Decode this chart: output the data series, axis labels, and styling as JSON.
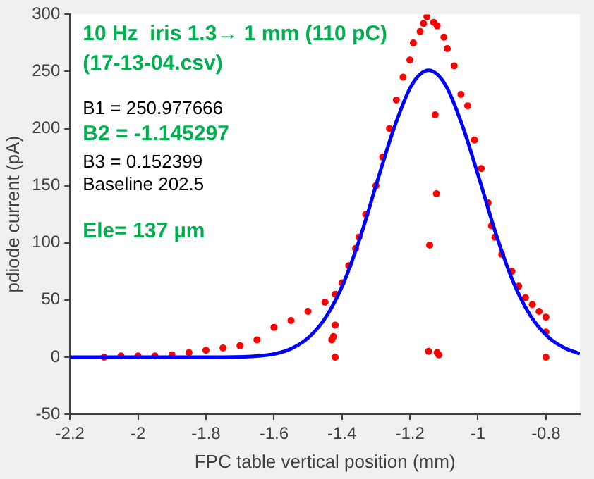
{
  "chart_data": {
    "type": "scatter",
    "xlabel": "FPC table vertical position (mm)",
    "ylabel": "pdiode current (pA)",
    "xlim": [
      -2.2,
      -0.7
    ],
    "xticks": [
      -2.2,
      -2,
      -1.8,
      -1.6,
      -1.4,
      -1.2,
      -1,
      -0.8
    ],
    "ylim": [
      -50,
      300
    ],
    "yticks": [
      -50,
      0,
      50,
      100,
      150,
      200,
      250,
      300
    ],
    "grid": false,
    "legend": false,
    "marker": "circle",
    "annotations": [
      "10 Hz  iris 1.3→ 1 mm (110 pC)",
      "(17-13-04.csv)",
      "B1 = 250.977666",
      "B2 = -1.145297",
      "B3 = 0.152399",
      "Baseline 202.5",
      "Ele= 137 µm"
    ],
    "series": [
      {
        "color": "#ff0000",
        "x": [
          -2.1,
          -2.05,
          -2.0,
          -1.95,
          -1.9,
          -1.85,
          -1.8,
          -1.75,
          -1.7,
          -1.65,
          -1.6,
          -1.55,
          -1.5,
          -1.45,
          -1.42,
          -1.4,
          -1.38,
          -1.36,
          -1.35,
          -1.33,
          -1.3,
          -1.28,
          -1.26,
          -1.24,
          -1.22,
          -1.2,
          -1.19,
          -1.17,
          -1.16,
          -1.15,
          -1.13,
          -1.12,
          -1.1,
          -1.09,
          -1.07,
          -1.05,
          -1.03,
          -1.01,
          -0.99,
          -0.97,
          -0.96,
          -0.95,
          -0.93,
          -0.9,
          -0.88,
          -0.86,
          -0.84,
          -0.82,
          -0.8,
          -0.8,
          -0.8,
          -1.42,
          -1.425,
          -1.43,
          -1.42,
          -1.142,
          -1.126,
          -1.122,
          -1.145,
          -1.12,
          -1.115
        ],
        "values": [
          0,
          1,
          1,
          1,
          2,
          4,
          6,
          8,
          10,
          15,
          26,
          32,
          40,
          48,
          55,
          65,
          80,
          95,
          105,
          125,
          150,
          175,
          200,
          225,
          245,
          260,
          275,
          285,
          292,
          298,
          293,
          290,
          280,
          270,
          255,
          230,
          220,
          190,
          165,
          135,
          115,
          105,
          90,
          75,
          62,
          52,
          46,
          40,
          35,
          22,
          0,
          28,
          18,
          15,
          0,
          98,
          212,
          143,
          5,
          4,
          2
        ]
      },
      {
        "type": "line",
        "color": "#0000ff",
        "marker": "none",
        "x": [
          -2.2,
          -1.745,
          -1.645,
          -1.595,
          -1.545,
          -1.495,
          -1.445,
          -1.395,
          -1.345,
          -1.295,
          -1.245,
          -1.195,
          -1.145,
          -1.095,
          -1.045,
          -0.995,
          -0.945,
          -0.895,
          -0.845,
          -0.795,
          -0.745,
          -0.7
        ],
        "values": [
          0,
          0,
          1,
          3,
          8,
          18,
          36,
          65,
          106,
          155,
          202,
          238,
          251,
          238,
          202,
          155,
          106,
          65,
          36,
          18,
          8,
          3
        ]
      }
    ]
  }
}
